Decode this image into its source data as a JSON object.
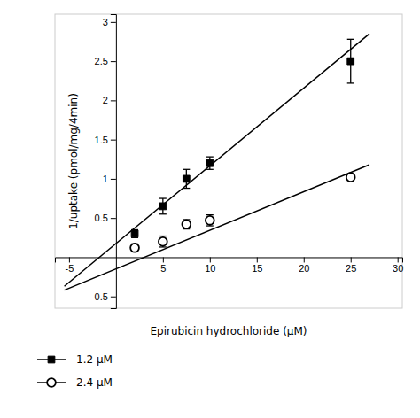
{
  "chart_data": {
    "type": "scatter",
    "xlabel": "Epirubicin hydrochloride (μM)",
    "ylabel": "1/uptake (pmol/mg/4min)",
    "xlim": [
      -6.5,
      30.5
    ],
    "ylim": [
      -0.65,
      3.1
    ],
    "xticks": [
      -5,
      5,
      10,
      15,
      20,
      25,
      30
    ],
    "yticks": [
      -0.5,
      0.5,
      1.0,
      1.5,
      2.0,
      2.5,
      3.0
    ],
    "legend": "bottom",
    "series": [
      {
        "name": "1.2 μM",
        "color": "black",
        "marker": "square",
        "x": [
          2,
          5,
          7.5,
          10,
          25
        ],
        "values": [
          0.3,
          0.65,
          1.0,
          1.2,
          2.5
        ],
        "errors": [
          0.05,
          0.1,
          0.12,
          0.08,
          0.28
        ],
        "line_x": [
          -5.5,
          27
        ],
        "line_values": [
          -0.37,
          2.85
        ]
      },
      {
        "name": "2.4 μM",
        "color": "black",
        "marker": "open-circle",
        "x": [
          2,
          5,
          7.5,
          10,
          25
        ],
        "values": [
          0.12,
          0.2,
          0.42,
          0.47,
          1.02
        ],
        "errors": [
          0.05,
          0.07,
          0.06,
          0.07,
          0.04
        ],
        "line_x": [
          -5.5,
          27
        ],
        "line_values": [
          -0.42,
          1.18
        ]
      }
    ]
  }
}
